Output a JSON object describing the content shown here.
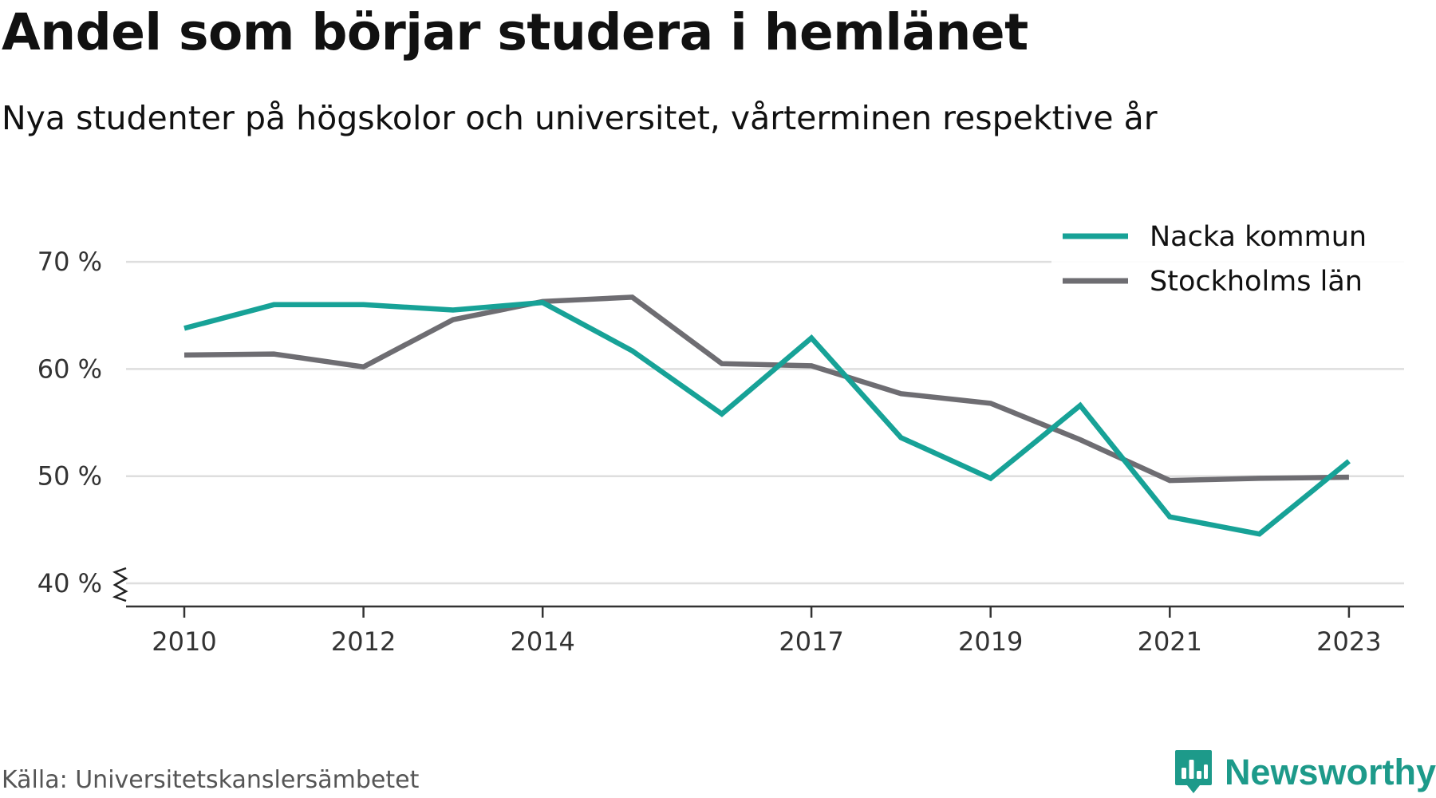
{
  "title": "Andel som börjar studera i hemlänet",
  "subtitle": "Nya studenter på högskolor och universitet, vårterminen respektive år",
  "source": "Källa: Universitetskanslersämbetet",
  "logo": {
    "text": "Newsworthy",
    "icon": "newsworthy-logo-icon"
  },
  "colors": {
    "nacka": "#17a297",
    "stockholm": "#6e6d72",
    "grid": "#dedede",
    "axis": "#333333"
  },
  "chart_data": {
    "type": "line",
    "title": "Andel som börjar studera i hemlänet",
    "subtitle": "Nya studenter på högskolor och universitet, vårterminen respektive år",
    "xlabel": "",
    "ylabel": "",
    "x": [
      2010,
      2011,
      2012,
      2013,
      2014,
      2015,
      2016,
      2017,
      2018,
      2019,
      2020,
      2021,
      2022,
      2023
    ],
    "xticks": [
      "2010",
      "2012",
      "2014",
      "2017",
      "2019",
      "2021",
      "2023"
    ],
    "yticks": [
      "40 %",
      "50 %",
      "60 %",
      "70 %"
    ],
    "ylim": [
      40,
      70
    ],
    "grid": true,
    "axis_break": true,
    "legend_position": "top-right",
    "series": [
      {
        "name": "Nacka kommun",
        "color": "#17a297",
        "values": [
          63.8,
          66.0,
          66.0,
          65.5,
          66.2,
          61.7,
          55.8,
          62.9,
          53.6,
          49.8,
          56.6,
          46.2,
          44.6,
          51.4
        ]
      },
      {
        "name": "Stockholms län",
        "color": "#6e6d72",
        "values": [
          61.3,
          61.4,
          60.2,
          64.6,
          66.3,
          66.7,
          60.5,
          60.3,
          57.7,
          56.8,
          53.4,
          49.6,
          49.8,
          49.9
        ]
      }
    ]
  }
}
